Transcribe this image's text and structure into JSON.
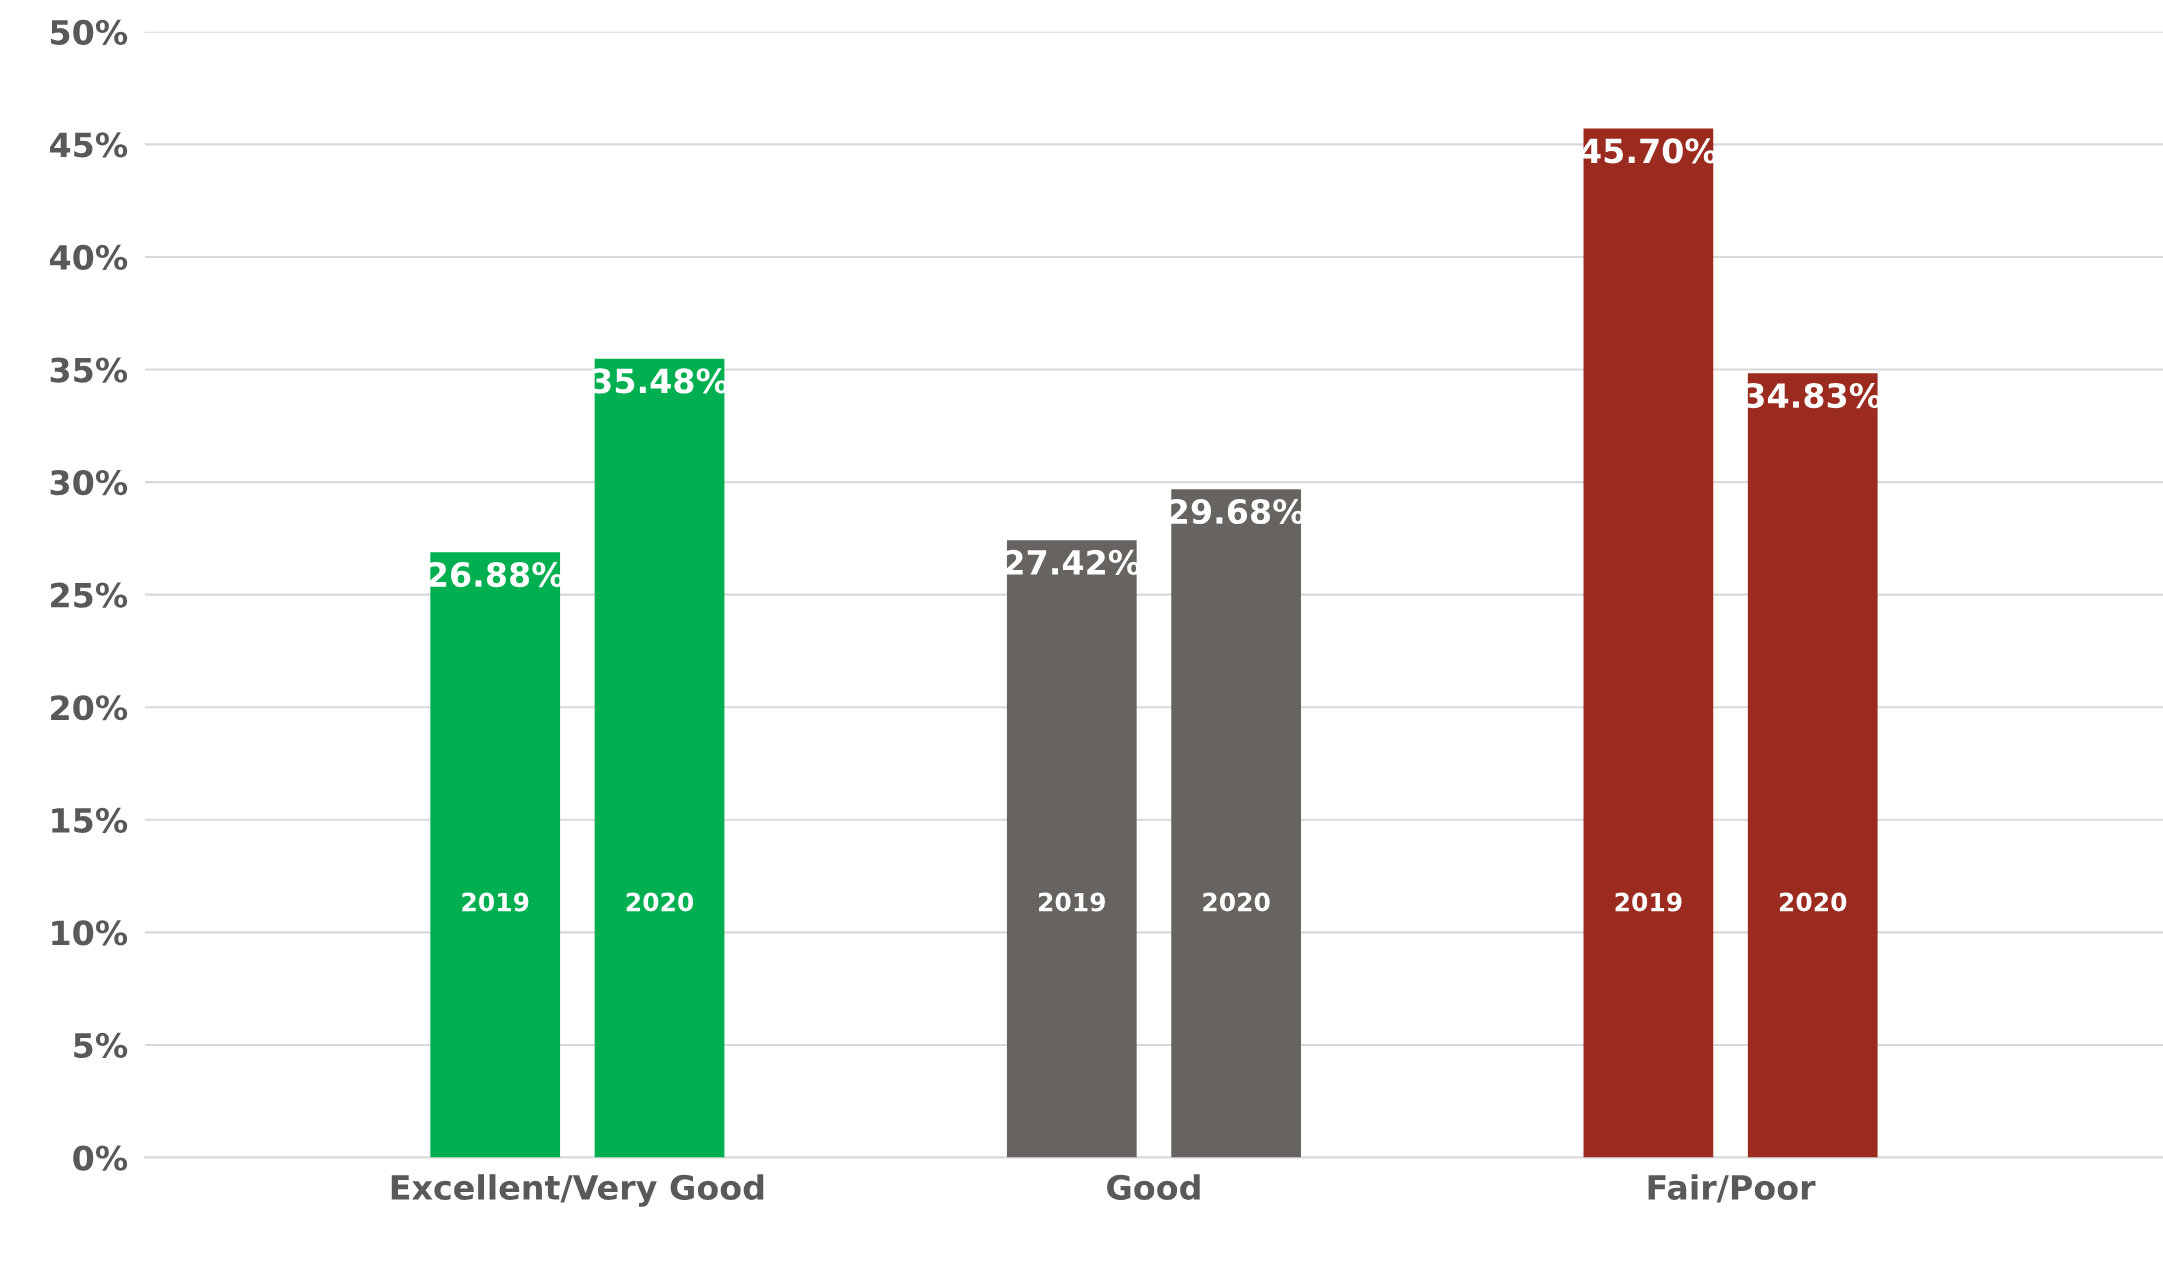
{
  "chart_data": {
    "type": "bar",
    "categories": [
      "Excellent/Very Good",
      "Good",
      "Fair/Poor"
    ],
    "series": [
      {
        "name": "2019",
        "colors": [
          "#00b050",
          "#676361",
          "#9b2b1f"
        ],
        "values": [
          26.88,
          27.42,
          45.7
        ],
        "value_labels": [
          "26.88%",
          "27.42%",
          "45.70%"
        ]
      },
      {
        "name": "2020",
        "colors": [
          "#00b050",
          "#676361",
          "#9b2b1f"
        ],
        "values": [
          35.48,
          29.68,
          34.83
        ],
        "value_labels": [
          "35.48%",
          "29.68%",
          "34.83%"
        ]
      }
    ],
    "ylim": [
      0,
      50
    ],
    "yticks": [
      {
        "value": 0,
        "label": "0%"
      },
      {
        "value": 5,
        "label": "5%"
      },
      {
        "value": 10,
        "label": "10%"
      },
      {
        "value": 15,
        "label": "15%"
      },
      {
        "value": 20,
        "label": "20%"
      },
      {
        "value": 25,
        "label": "25%"
      },
      {
        "value": 30,
        "label": "30%"
      },
      {
        "value": 35,
        "label": "35%"
      },
      {
        "value": 40,
        "label": "40%"
      },
      {
        "value": 45,
        "label": "45%"
      },
      {
        "value": 50,
        "label": "50%"
      }
    ],
    "grid": "y",
    "legend": false
  }
}
